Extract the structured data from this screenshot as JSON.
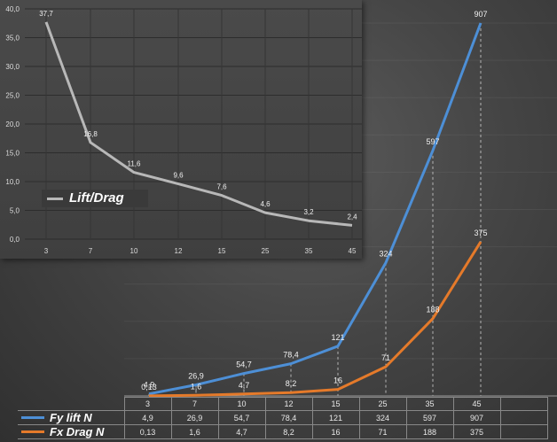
{
  "colors": {
    "lift": "#4d8fd6",
    "drag": "#e57a2a",
    "ratio": "#b8b8b8"
  },
  "chart_data": [
    {
      "type": "line",
      "categories": [
        "3",
        "7",
        "10",
        "12",
        "15",
        "25",
        "35",
        "45"
      ],
      "series": [
        {
          "name": "Fy lift N",
          "values": [
            4.9,
            26.9,
            54.7,
            78.4,
            121,
            324,
            597,
            907
          ],
          "labels": [
            "4,9",
            "26,9",
            "54,7",
            "78,4",
            "121",
            "324",
            "597",
            "907"
          ]
        },
        {
          "name": "Fx Drag N",
          "values": [
            0.13,
            1.6,
            4.7,
            8.2,
            16,
            71,
            188,
            375
          ],
          "labels": [
            "0,13",
            "1,6",
            "4,7",
            "8,2",
            "16",
            "71",
            "188",
            "375"
          ]
        }
      ],
      "ylim": [
        0,
        907
      ],
      "grid": false,
      "legend": "data-table"
    },
    {
      "type": "line",
      "categories": [
        "3",
        "7",
        "10",
        "12",
        "15",
        "25",
        "35",
        "45"
      ],
      "series": [
        {
          "name": "Lift/Drag",
          "values": [
            37.7,
            16.8,
            11.6,
            9.6,
            7.6,
            4.6,
            3.2,
            2.4
          ],
          "labels": [
            "37,7",
            "16,8",
            "11,6",
            "9,6",
            "7,6",
            "4,6",
            "3,2",
            "2,4"
          ]
        }
      ],
      "ylim": [
        0,
        40
      ],
      "yticks": [
        "0,0",
        "5,0",
        "10,0",
        "15,0",
        "20,0",
        "25,0",
        "30,0",
        "35,0",
        "40,0"
      ],
      "grid": true,
      "legend": "lower-left"
    }
  ]
}
